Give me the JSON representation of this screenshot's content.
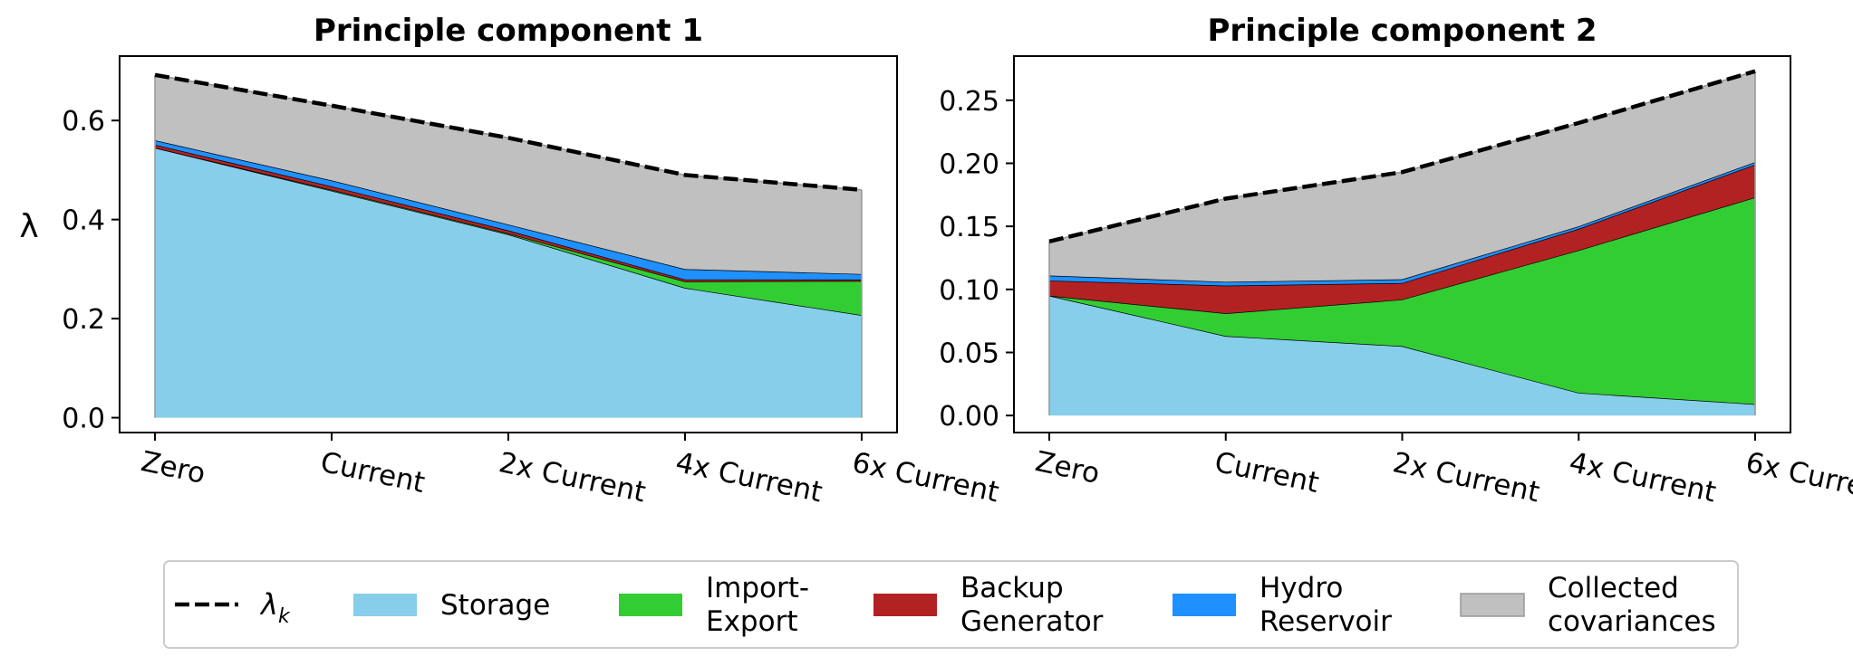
{
  "chart_data": [
    {
      "type": "area",
      "stacked": true,
      "title": "Principle component 1",
      "xlabel": "",
      "ylabel": "λ",
      "categories": [
        "Zero",
        "Current",
        "2x Current",
        "4x Current",
        "6x Current"
      ],
      "ylim": [
        -0.03,
        0.73
      ],
      "yticks": [
        "0.0",
        "0.2",
        "0.4",
        "0.6"
      ],
      "ytick_values": [
        0.0,
        0.2,
        0.4,
        0.6
      ],
      "grid": false,
      "series": [
        {
          "key": "storage",
          "values": [
            0.545,
            0.458,
            0.37,
            0.262,
            0.207
          ]
        },
        {
          "key": "import_export",
          "values": [
            0.0,
            0.002,
            0.002,
            0.013,
            0.069
          ]
        },
        {
          "key": "backup_generator",
          "values": [
            0.006,
            0.007,
            0.006,
            0.004,
            0.003
          ]
        },
        {
          "key": "hydro_reservoir",
          "values": [
            0.009,
            0.012,
            0.012,
            0.021,
            0.011
          ]
        },
        {
          "key": "collected_covariances",
          "values": [
            0.132,
            0.151,
            0.175,
            0.19,
            0.17
          ]
        }
      ],
      "lambda_k": [
        0.692,
        0.63,
        0.565,
        0.49,
        0.46
      ]
    },
    {
      "type": "area",
      "stacked": true,
      "title": "Principle component 2",
      "xlabel": "",
      "ylabel": "",
      "categories": [
        "Zero",
        "Current",
        "2x Current",
        "4x Current",
        "6x Current"
      ],
      "ylim": [
        -0.0135,
        0.285
      ],
      "yticks": [
        "0.00",
        "0.05",
        "0.10",
        "0.15",
        "0.20",
        "0.25"
      ],
      "ytick_values": [
        0.0,
        0.05,
        0.1,
        0.15,
        0.2,
        0.25
      ],
      "grid": false,
      "series": [
        {
          "key": "storage",
          "values": [
            0.095,
            0.063,
            0.055,
            0.018,
            0.009
          ]
        },
        {
          "key": "import_export",
          "values": [
            0.0,
            0.018,
            0.037,
            0.113,
            0.164
          ]
        },
        {
          "key": "backup_generator",
          "values": [
            0.012,
            0.022,
            0.013,
            0.017,
            0.026
          ]
        },
        {
          "key": "hydro_reservoir",
          "values": [
            0.004,
            0.003,
            0.003,
            0.002,
            0.002
          ]
        },
        {
          "key": "collected_covariances",
          "values": [
            0.027,
            0.066,
            0.085,
            0.082,
            0.072
          ]
        }
      ],
      "lambda_k": [
        0.138,
        0.172,
        0.193,
        0.232,
        0.273
      ]
    }
  ],
  "legend": {
    "placement": "bottom-center",
    "entries": [
      {
        "key": "lambda_k",
        "label_main": "λ",
        "label_sub": "k",
        "style": "dashed-line"
      },
      {
        "key": "storage",
        "label": [
          "Storage"
        ]
      },
      {
        "key": "import_export",
        "label": [
          "Import-",
          "Export"
        ]
      },
      {
        "key": "backup_generator",
        "label": [
          "Backup",
          "Generator"
        ]
      },
      {
        "key": "hydro_reservoir",
        "label": [
          "Hydro",
          "Reservoir"
        ]
      },
      {
        "key": "collected_covariances",
        "label": [
          "Collected",
          "covariances"
        ]
      }
    ]
  },
  "colors": {
    "storage": "#87ceeb",
    "import_export": "#32cd32",
    "backup_generator": "#b22222",
    "hydro_reservoir": "#1e90ff",
    "collected_covariances": "#c0c0c0",
    "lambda_k": "#000000"
  }
}
